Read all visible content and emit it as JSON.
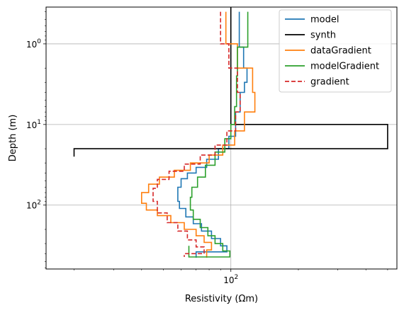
{
  "chart_data": {
    "type": "line",
    "title": "",
    "xlabel": "Resistivity (Ωm)",
    "ylabel": "Depth (m)",
    "xscale": "log",
    "yscale": "log",
    "yinverted": true,
    "xlim": [
      15,
      550
    ],
    "ylim": [
      0.35,
      620
    ],
    "grid": true,
    "legend_placement": "top-right",
    "xticks": [
      {
        "value": 100,
        "base": "10",
        "exp": "2"
      }
    ],
    "yticks": [
      {
        "value": 1,
        "base": "10",
        "exp": "0"
      },
      {
        "value": 10,
        "base": "10",
        "exp": "1"
      },
      {
        "value": 100,
        "base": "10",
        "exp": "2"
      }
    ],
    "series": [
      {
        "name": "model",
        "color": "#1f77b4",
        "dash": "solid",
        "x": [
          109,
          109,
          114,
          114,
          118,
          118,
          115,
          115,
          110,
          110,
          105,
          105,
          98,
          98,
          88,
          88,
          78,
          78,
          70,
          70,
          64,
          64,
          60,
          60,
          58,
          58,
          59,
          59,
          63,
          63,
          68,
          68,
          74,
          74,
          82,
          82,
          90,
          90,
          96,
          96,
          70,
          70
        ],
        "y": [
          0.4,
          1.1,
          1.1,
          2.0,
          2.0,
          3.0,
          3.0,
          4.0,
          4.0,
          7.0,
          7.0,
          14.0,
          14.0,
          20.0,
          20.0,
          27.0,
          27.0,
          34.0,
          34.0,
          40.0,
          40.0,
          47.0,
          47.0,
          60.0,
          60.0,
          90.0,
          90.0,
          110.0,
          110.0,
          140.0,
          140.0,
          170.0,
          170.0,
          210.0,
          210.0,
          260.0,
          260.0,
          320.0,
          320.0,
          380.0,
          380.0,
          450.0
        ]
      },
      {
        "name": "synth",
        "color": "#000000",
        "dash": "solid",
        "x": [
          100,
          100,
          500,
          500,
          20,
          20
        ],
        "y": [
          0.35,
          10,
          10,
          20,
          20,
          25
        ]
      },
      {
        "name": "dataGradient",
        "color": "#ff7f0e",
        "dash": "solid",
        "x": [
          95,
          95,
          107,
          107,
          125,
          125,
          128,
          128,
          115,
          115,
          104,
          104,
          92,
          92,
          80,
          80,
          66,
          66,
          56,
          56,
          48,
          48,
          43,
          43,
          40,
          40,
          42,
          42,
          47,
          47,
          54,
          54,
          62,
          62,
          70,
          70,
          76,
          76,
          82,
          82,
          78,
          78
        ],
        "y": [
          0.4,
          1.0,
          1.0,
          2.0,
          2.0,
          4.0,
          4.0,
          7.0,
          7.0,
          12.0,
          12.0,
          18.0,
          18.0,
          24.0,
          24.0,
          30.0,
          30.0,
          37.0,
          37.0,
          45.0,
          45.0,
          55.0,
          55.0,
          70.0,
          70.0,
          95.0,
          95.0,
          115.0,
          115.0,
          135.0,
          135.0,
          165.0,
          165.0,
          200.0,
          200.0,
          240.0,
          240.0,
          290.0,
          290.0,
          360.0,
          360.0,
          450.0
        ]
      },
      {
        "name": "modelGradient",
        "color": "#2ca02c",
        "dash": "solid",
        "x": [
          119,
          119,
          107,
          107,
          106,
          106,
          104,
          104,
          100,
          100,
          94,
          94,
          85,
          85,
          77,
          77,
          71,
          71,
          67,
          67,
          66,
          66,
          68,
          68,
          73,
          73,
          79,
          79,
          85,
          85,
          92,
          92,
          99,
          99,
          65,
          65
        ],
        "y": [
          0.4,
          1.1,
          1.1,
          2.5,
          2.5,
          6.0,
          6.0,
          10.0,
          10.0,
          15.0,
          15.0,
          22.0,
          22.0,
          32.0,
          32.0,
          45.0,
          45.0,
          60.0,
          60.0,
          80.0,
          80.0,
          115.0,
          115.0,
          150.0,
          150.0,
          190.0,
          190.0,
          240.0,
          240.0,
          300.0,
          300.0,
          370.0,
          370.0,
          440.0,
          440.0,
          320.0
        ]
      },
      {
        "name": "gradient",
        "color": "#d62728",
        "dash": "dashed",
        "x": [
          90,
          90,
          98,
          98,
          107,
          107,
          110,
          110,
          105,
          105,
          96,
          96,
          85,
          85,
          73,
          73,
          62,
          62,
          53,
          53,
          47,
          47,
          45,
          45,
          47,
          47,
          52,
          52,
          58,
          58,
          64,
          64,
          70,
          70,
          76,
          76,
          62,
          62
        ],
        "y": [
          0.4,
          1.0,
          1.0,
          2.0,
          2.0,
          4.0,
          4.0,
          7.0,
          7.0,
          12.0,
          12.0,
          18.0,
          18.0,
          24.0,
          24.0,
          31.0,
          31.0,
          38.0,
          38.0,
          48.0,
          48.0,
          62.0,
          62.0,
          90.0,
          90.0,
          125.0,
          125.0,
          165.0,
          165.0,
          210.0,
          210.0,
          270.0,
          270.0,
          330.0,
          330.0,
          400.0,
          400.0,
          440.0
        ]
      }
    ]
  }
}
